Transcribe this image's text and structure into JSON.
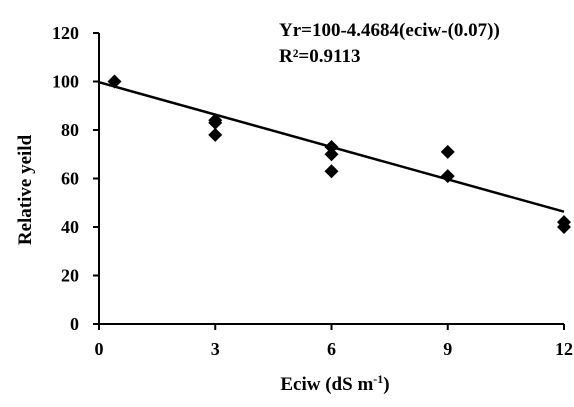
{
  "chart_data": {
    "type": "scatter",
    "xlabel_main": "Eciw (dS m",
    "xlabel_sup": "-1",
    "xlabel_end": ")",
    "ylabel": "Relative yeild",
    "xlim": [
      0,
      12
    ],
    "ylim": [
      0,
      120
    ],
    "xticks": [
      0,
      3,
      6,
      9,
      12
    ],
    "yticks": [
      0,
      20,
      40,
      60,
      80,
      100,
      120
    ],
    "grid": false,
    "points": [
      {
        "x": 0.4,
        "y": 100
      },
      {
        "x": 3,
        "y": 84
      },
      {
        "x": 3,
        "y": 83
      },
      {
        "x": 3,
        "y": 78
      },
      {
        "x": 6,
        "y": 73
      },
      {
        "x": 6,
        "y": 70
      },
      {
        "x": 6,
        "y": 63
      },
      {
        "x": 9,
        "y": 71
      },
      {
        "x": 9,
        "y": 61
      },
      {
        "x": 12,
        "y": 42
      },
      {
        "x": 12,
        "y": 40
      }
    ],
    "trendline": {
      "x": [
        0,
        12
      ],
      "y": [
        99.7,
        46.3
      ]
    },
    "annotations": {
      "equation": "Yr=100-4.4684(eciw-(0.07))",
      "r2_label": "R²=0.9113"
    },
    "colors": {
      "marker": "#000000",
      "line": "#000000",
      "axis": "#000000"
    }
  }
}
